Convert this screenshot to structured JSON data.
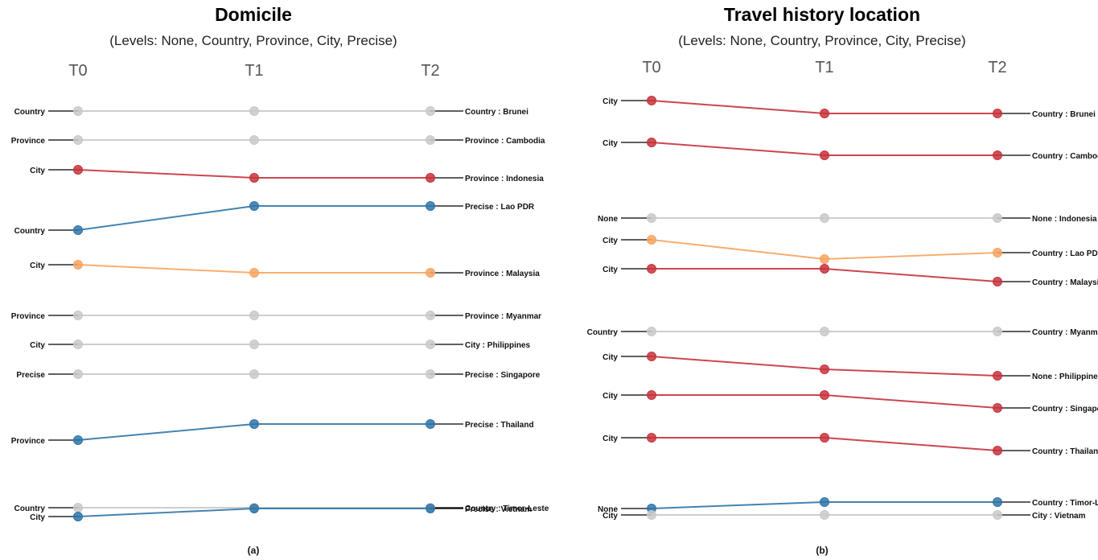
{
  "colors": {
    "unchanged": "#c9c9c9",
    "red": "#c8323c",
    "blue": "#2f75a8",
    "orange": "#f6a561",
    "leader": "#000000"
  },
  "chart_data": [
    {
      "type": "slope",
      "title": "Domicile",
      "subtitle": "(Levels: None, Country, Province, City, Precise)",
      "x": [
        "T0",
        "T1",
        "T2"
      ],
      "caption": "(a)",
      "series": [
        {
          "name": "Brunei",
          "left_label": "Country",
          "right_label": "Country : Brunei",
          "values": [
            "Country",
            "Country",
            "Country"
          ],
          "color": "unchanged"
        },
        {
          "name": "Cambodia",
          "left_label": "Province",
          "right_label": "Province : Cambodia",
          "values": [
            "Province",
            "Province",
            "Province"
          ],
          "color": "unchanged"
        },
        {
          "name": "Indonesia",
          "left_label": "City",
          "right_label": "Province : Indonesia",
          "values": [
            "City",
            "Province",
            "Province"
          ],
          "color": "red"
        },
        {
          "name": "Lao PDR",
          "left_label": "Country",
          "right_label": "Precise : Lao PDR",
          "values": [
            "Country",
            "Precise",
            "Precise"
          ],
          "color": "blue"
        },
        {
          "name": "Malaysia",
          "left_label": "City",
          "right_label": "Province : Malaysia",
          "values": [
            "City",
            "Province",
            "Province"
          ],
          "color": "orange"
        },
        {
          "name": "Myanmar",
          "left_label": "Province",
          "right_label": "Province : Myanmar",
          "values": [
            "Province",
            "Province",
            "Province"
          ],
          "color": "unchanged"
        },
        {
          "name": "Philippines",
          "left_label": "City",
          "right_label": "City : Philippines",
          "values": [
            "City",
            "City",
            "City"
          ],
          "color": "unchanged"
        },
        {
          "name": "Singapore",
          "left_label": "Precise",
          "right_label": "Precise : Singapore",
          "values": [
            "Precise",
            "Precise",
            "Precise"
          ],
          "color": "unchanged"
        },
        {
          "name": "Thailand",
          "left_label": "Province",
          "right_label": "Precise : Thailand",
          "values": [
            "Province",
            "Precise",
            "Precise"
          ],
          "color": "blue"
        },
        {
          "name": "Timor-Leste",
          "left_label": "Country",
          "right_label": "Country : Timor-Leste",
          "values": [
            "Country",
            "Country",
            "Country"
          ],
          "color": "unchanged"
        },
        {
          "name": "Vietnam",
          "left_label": "City",
          "right_label": "Precise : Vietnam",
          "values": [
            "City",
            "Precise",
            "Precise"
          ],
          "color": "blue"
        }
      ]
    },
    {
      "type": "slope",
      "title": "Travel history location",
      "subtitle": "(Levels: None, Country, Province, City, Precise)",
      "x": [
        "T0",
        "T1",
        "T2"
      ],
      "caption": "(b)",
      "series": [
        {
          "name": "Brunei",
          "left_label": "City",
          "right_label": "Country : Brunei",
          "values": [
            "City",
            "Country",
            "Country"
          ],
          "color": "red"
        },
        {
          "name": "Cambodia",
          "left_label": "City",
          "right_label": "Country : Cambodia",
          "values": [
            "City",
            "Country",
            "Country"
          ],
          "color": "red"
        },
        {
          "name": "Indonesia",
          "left_label": "None",
          "right_label": "None : Indonesia",
          "values": [
            "None",
            "None",
            "None"
          ],
          "color": "unchanged"
        },
        {
          "name": "Lao PDR",
          "left_label": "City",
          "right_label": "Country : Lao PDR",
          "values": [
            "City",
            "None",
            "Country"
          ],
          "color": "orange"
        },
        {
          "name": "Malaysia",
          "left_label": "City",
          "right_label": "Country : Malaysia",
          "values": [
            "City",
            "City",
            "Country"
          ],
          "color": "red"
        },
        {
          "name": "Myanmar",
          "left_label": "Country",
          "right_label": "Country : Myanmar",
          "values": [
            "Country",
            "Country",
            "Country"
          ],
          "color": "unchanged"
        },
        {
          "name": "Philippines",
          "left_label": "City",
          "right_label": "None : Philippines",
          "values": [
            "City",
            "Country",
            "None"
          ],
          "color": "red"
        },
        {
          "name": "Singapore",
          "left_label": "City",
          "right_label": "Country : Singapore",
          "values": [
            "City",
            "City",
            "Country"
          ],
          "color": "red"
        },
        {
          "name": "Thailand",
          "left_label": "City",
          "right_label": "Country : Thailand",
          "values": [
            "City",
            "City",
            "Country"
          ],
          "color": "red"
        },
        {
          "name": "Timor-Leste",
          "left_label": "None",
          "right_label": "Country : Timor-Leste",
          "values": [
            "None",
            "Country",
            "Country"
          ],
          "color": "blue"
        },
        {
          "name": "Vietnam",
          "left_label": "City",
          "right_label": "City : Vietnam",
          "values": [
            "City",
            "City",
            "City"
          ],
          "color": "unchanged"
        }
      ]
    }
  ]
}
